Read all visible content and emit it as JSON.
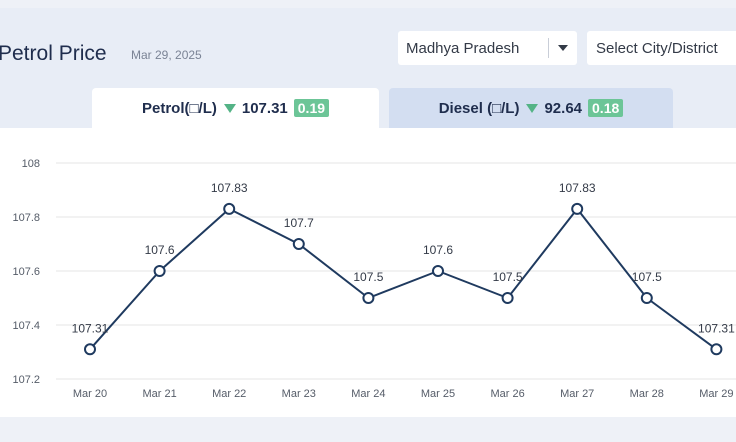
{
  "header": {
    "title": "Petrol Price",
    "date": "Mar 29, 2025",
    "state_select_value": "Madhya Pradesh",
    "city_select_placeholder": "Select City/District"
  },
  "tabs": [
    {
      "label": "Petrol(□/L)",
      "price": "107.31",
      "change": "0.19",
      "trend": "down",
      "active": true
    },
    {
      "label": "Diesel (□/L)",
      "price": "92.64",
      "change": "0.18",
      "trend": "down",
      "active": false
    }
  ],
  "colors": {
    "line": "#1f3a5f",
    "grid": "#e6e6e6",
    "trend_down": "#54b386",
    "badge": "#6cc597"
  },
  "icons": [
    "chevron-down-icon",
    "down-triangle-icon"
  ],
  "chart_data": {
    "type": "line",
    "categories": [
      "Mar 20",
      "Mar 21",
      "Mar 22",
      "Mar 23",
      "Mar 24",
      "Mar 25",
      "Mar 26",
      "Mar 27",
      "Mar 28",
      "Mar 29"
    ],
    "series": [
      {
        "values": [
          107.31,
          107.6,
          107.83,
          107.7,
          107.5,
          107.6,
          107.5,
          107.83,
          107.5,
          107.31
        ]
      }
    ],
    "data_labels": [
      "107.31",
      "107.6",
      "107.83",
      "107.7",
      "107.5",
      "107.6",
      "107.5",
      "107.83",
      "107.5",
      "107.31"
    ],
    "y_ticks": [
      "107.2",
      "107.4",
      "107.6",
      "107.8",
      "108"
    ],
    "ylim": [
      107.2,
      108
    ],
    "grid": true,
    "legend": false,
    "title": "",
    "xlabel": "",
    "ylabel": ""
  }
}
